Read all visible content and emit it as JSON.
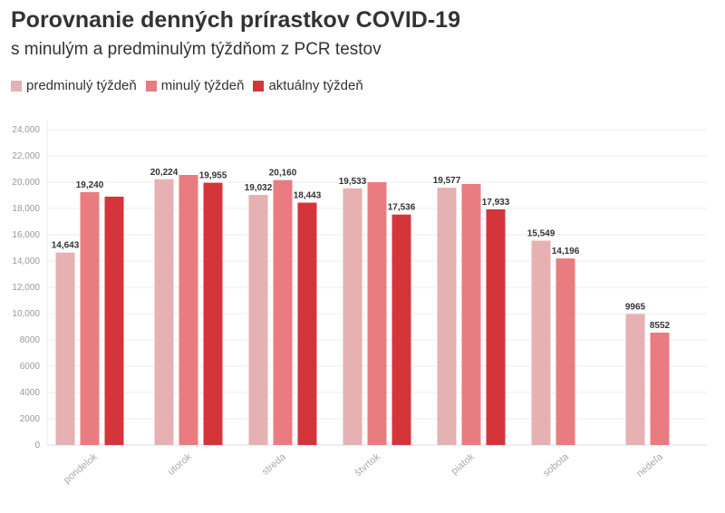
{
  "chart_data": {
    "type": "bar",
    "title": "Porovnanie denných prírastkov COVID-19",
    "subtitle": "s minulým a predminulým týždňom z PCR testov",
    "categories": [
      "pondelok",
      "utorok",
      "streda",
      "štvrtok",
      "piatok",
      "sobota",
      "nedeľa"
    ],
    "series": [
      {
        "name": "predminulý týždeň",
        "color": "#e5b1b3",
        "values": [
          14643,
          20224,
          19032,
          19533,
          19577,
          15549,
          9965
        ],
        "labels": [
          "14,643",
          "20,224",
          "19,032",
          "19,533",
          "19,577",
          "15,549",
          "9965"
        ]
      },
      {
        "name": "minulý týždeň",
        "color": "#e87c80",
        "values": [
          19240,
          20550,
          20160,
          20000,
          19860,
          14196,
          8552
        ],
        "labels": [
          "19,240",
          "",
          "20,160",
          "",
          "",
          "14,196",
          "8552"
        ]
      },
      {
        "name": "aktuálny týždeň",
        "color": "#d4353b",
        "values": [
          18900,
          19955,
          18443,
          17536,
          17933,
          null,
          null
        ],
        "labels": [
          "",
          "19,955",
          "18,443",
          "17,536",
          "17,933",
          "",
          ""
        ]
      }
    ],
    "ylim": [
      0,
      24000
    ],
    "yticks": [
      "0",
      "2000",
      "4000",
      "6000",
      "8000",
      "10,000",
      "12,000",
      "14,000",
      "16,000",
      "18,000",
      "20,000",
      "22,000",
      "24,000"
    ],
    "grid": true,
    "legend": "top-left"
  }
}
